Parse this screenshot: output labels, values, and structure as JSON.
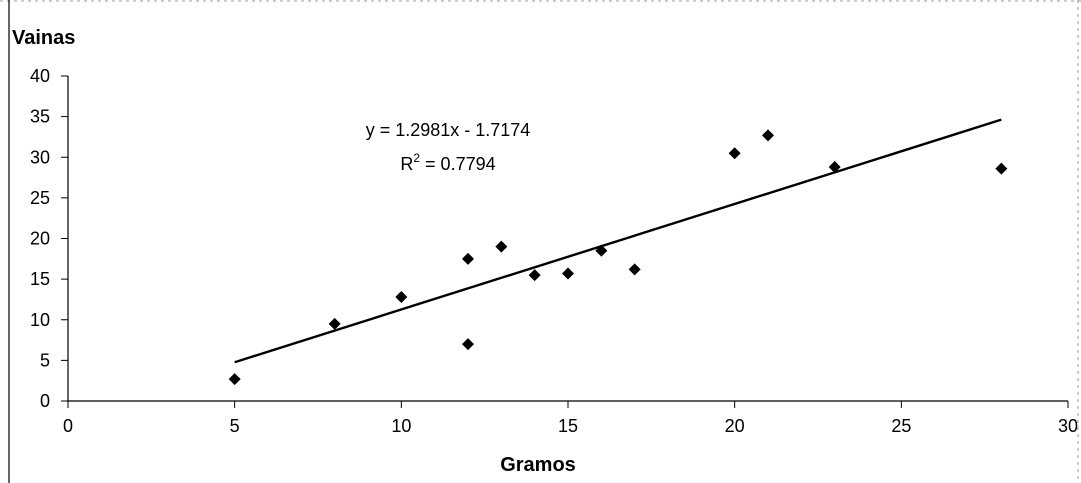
{
  "chart_data": {
    "type": "scatter",
    "ylabel": "Vainas",
    "xlabel": "Gramos",
    "xlim": [
      0,
      30
    ],
    "ylim": [
      0,
      40
    ],
    "xticks": [
      0,
      5,
      10,
      15,
      20,
      25,
      30
    ],
    "yticks": [
      0,
      5,
      10,
      15,
      20,
      25,
      30,
      35,
      40
    ],
    "marker_color": "#000000",
    "marker": "diamond",
    "points": [
      {
        "x": 5,
        "y": 2.7
      },
      {
        "x": 8,
        "y": 9.5
      },
      {
        "x": 10,
        "y": 12.8
      },
      {
        "x": 12,
        "y": 7
      },
      {
        "x": 12,
        "y": 17.5
      },
      {
        "x": 13,
        "y": 19
      },
      {
        "x": 14,
        "y": 15.5
      },
      {
        "x": 15,
        "y": 15.7
      },
      {
        "x": 16,
        "y": 18.5
      },
      {
        "x": 17,
        "y": 16.2
      },
      {
        "x": 20,
        "y": 30.5
      },
      {
        "x": 21,
        "y": 32.7
      },
      {
        "x": 23,
        "y": 28.8
      },
      {
        "x": 28,
        "y": 28.6
      }
    ],
    "trendline": {
      "type": "linear",
      "slope": 1.2981,
      "intercept": -1.7174,
      "x_range": [
        5,
        28
      ],
      "equation_label": "y = 1.2981x - 1.7174",
      "r2_prefix": "R",
      "r2_superscript": "2",
      "r2_suffix": " = 0.7794"
    }
  }
}
